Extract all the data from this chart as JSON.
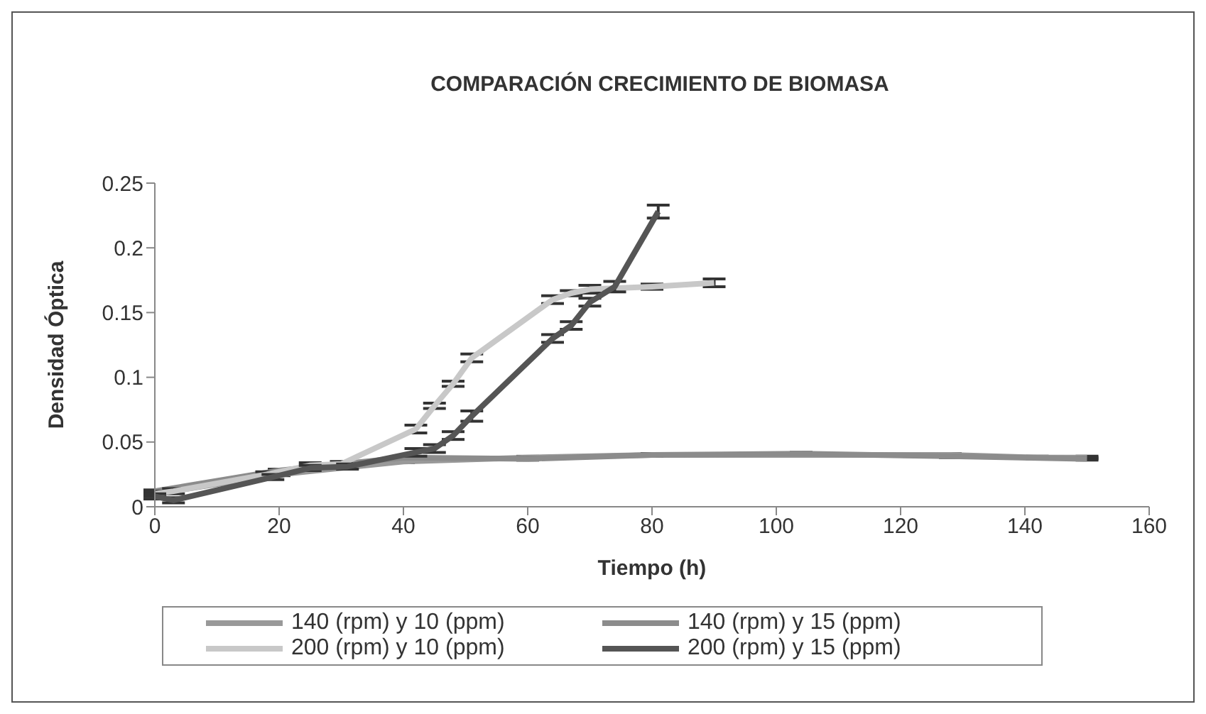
{
  "chart_data": {
    "type": "line",
    "title": "COMPARACIÓN CRECIMIENTO DE BIOMASA",
    "xlabel": "Tiempo (h)",
    "ylabel": "Densidad Óptica",
    "xlim": [
      0,
      160
    ],
    "xticks": [
      0,
      20,
      40,
      60,
      80,
      100,
      120,
      140,
      160
    ],
    "ylim": [
      0,
      0.25
    ],
    "yticks": [
      0,
      0.05,
      0.1,
      0.15,
      0.2,
      0.25
    ],
    "legend": "bottom",
    "grid": false,
    "marker": "none",
    "line_style": "solid",
    "series": [
      {
        "name": "140 (rpm) y 10 (ppm)",
        "color": "#999999",
        "x": [
          0,
          20,
          40,
          60,
          80,
          105,
          128,
          142,
          150
        ],
        "values": [
          0.01,
          0.025,
          0.035,
          0.038,
          0.04,
          0.04,
          0.04,
          0.038,
          0.038
        ],
        "errors": [
          0.001,
          0.001,
          0.001,
          0.001,
          0.001,
          0.001,
          0.001,
          0.001,
          0.001
        ]
      },
      {
        "name": "140 (rpm) y 15 (ppm)",
        "color": "#8c8c8c",
        "x": [
          0,
          20,
          40,
          60,
          80,
          104,
          128,
          150
        ],
        "values": [
          0.012,
          0.028,
          0.038,
          0.037,
          0.04,
          0.041,
          0.039,
          0.037
        ],
        "errors": [
          0.001,
          0.001,
          0.001,
          0.001,
          0.001,
          0.001,
          0.001,
          0.001
        ]
      },
      {
        "name": "200 (rpm) y 10 (ppm)",
        "color": "#c8c8c8",
        "x": [
          0,
          3,
          18,
          25,
          30,
          42,
          45,
          48,
          51,
          64,
          67,
          70,
          80,
          90
        ],
        "values": [
          0.01,
          0.012,
          0.025,
          0.032,
          0.033,
          0.06,
          0.078,
          0.095,
          0.115,
          0.16,
          0.165,
          0.168,
          0.17,
          0.173
        ],
        "errors": [
          0.002,
          0.002,
          0.002,
          0.002,
          0.002,
          0.003,
          0.002,
          0.002,
          0.003,
          0.003,
          0.002,
          0.003,
          0.002,
          0.003
        ]
      },
      {
        "name": "200 (rpm) y 15 (ppm)",
        "color": "#555555",
        "x": [
          0,
          3,
          19,
          25,
          31,
          42,
          45,
          48,
          51,
          64,
          67,
          70,
          74,
          81
        ],
        "values": [
          0.008,
          0.005,
          0.023,
          0.03,
          0.031,
          0.042,
          0.045,
          0.055,
          0.07,
          0.13,
          0.14,
          0.158,
          0.17,
          0.228
        ],
        "errors": [
          0.002,
          0.002,
          0.002,
          0.002,
          0.002,
          0.003,
          0.003,
          0.003,
          0.004,
          0.003,
          0.003,
          0.003,
          0.004,
          0.005
        ]
      }
    ]
  }
}
